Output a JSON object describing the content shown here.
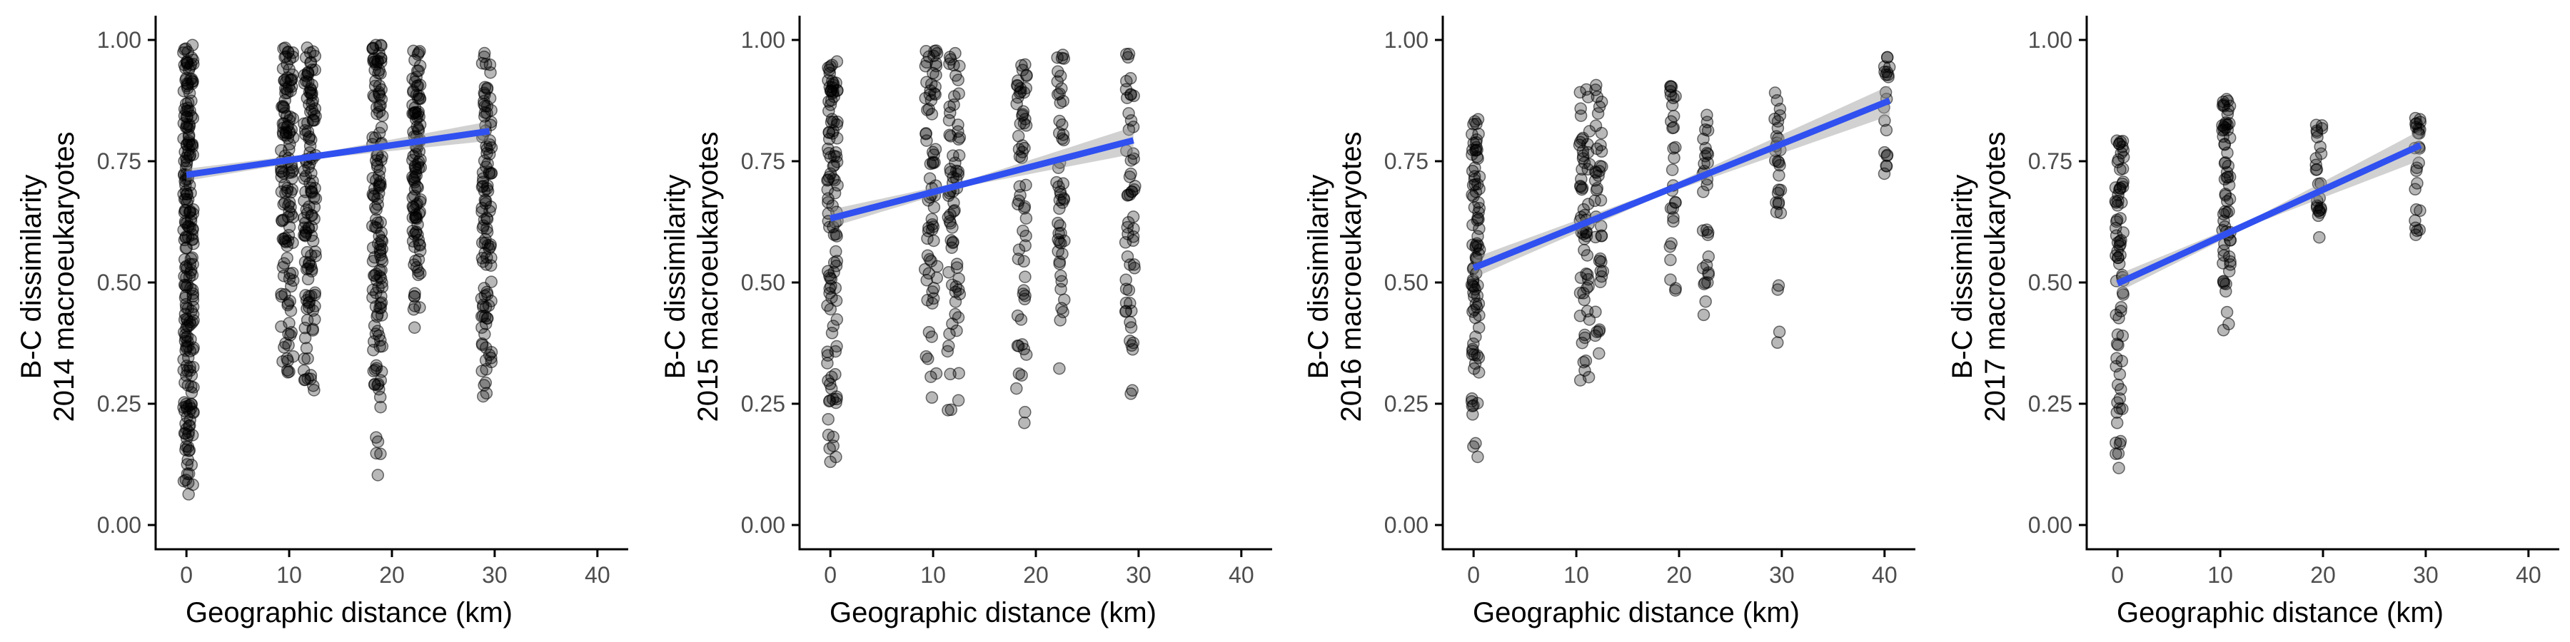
{
  "chart_data": [
    {
      "type": "scatter",
      "xlabel": "Geographic distance (km)",
      "ylabel_lines": [
        "B-C dissimilarity",
        "2014 macroeukaryotes"
      ],
      "xlim": [
        -3,
        43
      ],
      "ylim": [
        -0.05,
        1.05
      ],
      "xticks": [
        0,
        10,
        20,
        30,
        40
      ],
      "yticks": [
        0.0,
        0.25,
        0.5,
        0.75,
        1.0
      ],
      "ytick_labels": [
        "0.00",
        "0.25",
        "0.50",
        "0.75",
        "1.00"
      ],
      "groups": [
        {
          "x": 0.2,
          "spread": 0.5,
          "ymin": 0.05,
          "ymax": 0.99,
          "n": 230
        },
        {
          "x": 9.8,
          "spread": 0.6,
          "ymin": 0.27,
          "ymax": 0.99,
          "n": 130
        },
        {
          "x": 12.0,
          "spread": 0.6,
          "ymin": 0.27,
          "ymax": 0.99,
          "n": 130
        },
        {
          "x": 18.6,
          "spread": 0.5,
          "ymin": 0.1,
          "ymax": 0.99,
          "n": 140
        },
        {
          "x": 22.4,
          "spread": 0.4,
          "ymin": 0.38,
          "ymax": 0.98,
          "n": 110
        },
        {
          "x": 29.2,
          "spread": 0.5,
          "ymin": 0.25,
          "ymax": 0.98,
          "n": 110
        }
      ],
      "fit": {
        "x": [
          0,
          29.5
        ],
        "y": [
          0.722,
          0.812
        ],
        "ci_start": 0.008,
        "ci_end": 0.014
      }
    },
    {
      "type": "scatter",
      "xlabel": "Geographic distance (km)",
      "ylabel_lines": [
        "B-C dissimilarity",
        "2015 macroeukaryotes"
      ],
      "xlim": [
        -3,
        43
      ],
      "ylim": [
        -0.05,
        1.05
      ],
      "xticks": [
        0,
        10,
        20,
        30,
        40
      ],
      "yticks": [
        0.0,
        0.25,
        0.5,
        0.75,
        1.0
      ],
      "ytick_labels": [
        "0.00",
        "0.25",
        "0.50",
        "0.75",
        "1.00"
      ],
      "groups": [
        {
          "x": 0.2,
          "spread": 0.5,
          "ymin": 0.09,
          "ymax": 0.97,
          "n": 110
        },
        {
          "x": 9.8,
          "spread": 0.6,
          "ymin": 0.25,
          "ymax": 0.98,
          "n": 70
        },
        {
          "x": 12.0,
          "spread": 0.6,
          "ymin": 0.19,
          "ymax": 0.98,
          "n": 70
        },
        {
          "x": 18.6,
          "spread": 0.5,
          "ymin": 0.18,
          "ymax": 0.97,
          "n": 60
        },
        {
          "x": 22.4,
          "spread": 0.4,
          "ymin": 0.3,
          "ymax": 0.97,
          "n": 50
        },
        {
          "x": 29.2,
          "spread": 0.5,
          "ymin": 0.27,
          "ymax": 0.98,
          "n": 55
        }
      ],
      "fit": {
        "x": [
          0,
          29.5
        ],
        "y": [
          0.632,
          0.793
        ],
        "ci_start": 0.015,
        "ci_end": 0.022
      }
    },
    {
      "type": "scatter",
      "xlabel": "Geographic distance (km)",
      "ylabel_lines": [
        "B-C dissimilarity",
        "2016 macroeukaryotes"
      ],
      "xlim": [
        -3,
        43
      ],
      "ylim": [
        -0.05,
        1.05
      ],
      "xticks": [
        0,
        10,
        20,
        30,
        40
      ],
      "yticks": [
        0.0,
        0.25,
        0.5,
        0.75,
        1.0
      ],
      "ytick_labels": [
        "0.00",
        "0.25",
        "0.50",
        "0.75",
        "1.00"
      ],
      "groups": [
        {
          "x": 0.2,
          "spread": 0.4,
          "ymin": 0.13,
          "ymax": 0.84,
          "n": 90
        },
        {
          "x": 10.8,
          "spread": 0.5,
          "ymin": 0.28,
          "ymax": 0.91,
          "n": 60
        },
        {
          "x": 12.2,
          "spread": 0.4,
          "ymin": 0.31,
          "ymax": 0.94,
          "n": 40
        },
        {
          "x": 19.4,
          "spread": 0.3,
          "ymin": 0.43,
          "ymax": 0.91,
          "n": 30
        },
        {
          "x": 22.6,
          "spread": 0.3,
          "ymin": 0.42,
          "ymax": 0.93,
          "n": 30
        },
        {
          "x": 29.6,
          "spread": 0.3,
          "ymin": 0.35,
          "ymax": 0.9,
          "n": 30
        },
        {
          "x": 40.2,
          "spread": 0.3,
          "ymin": 0.68,
          "ymax": 0.97,
          "n": 20
        }
      ],
      "fit": {
        "x": [
          0,
          40.5
        ],
        "y": [
          0.53,
          0.875
        ],
        "ci_start": 0.018,
        "ci_end": 0.025
      }
    },
    {
      "type": "scatter",
      "xlabel": "Geographic distance (km)",
      "ylabel_lines": [
        "B-C dissimilarity",
        "2017 macroeukaryotes"
      ],
      "xlim": [
        -3,
        43
      ],
      "ylim": [
        -0.05,
        1.05
      ],
      "xticks": [
        0,
        10,
        20,
        30,
        40
      ],
      "yticks": [
        0.0,
        0.25,
        0.5,
        0.75,
        1.0
      ],
      "ytick_labels": [
        "0.00",
        "0.25",
        "0.50",
        "0.75",
        "1.00"
      ],
      "groups": [
        {
          "x": 0.2,
          "spread": 0.4,
          "ymin": 0.09,
          "ymax": 0.8,
          "n": 75
        },
        {
          "x": 10.6,
          "spread": 0.4,
          "ymin": 0.38,
          "ymax": 0.88,
          "n": 65
        },
        {
          "x": 19.6,
          "spread": 0.3,
          "ymin": 0.58,
          "ymax": 0.87,
          "n": 25
        },
        {
          "x": 29.2,
          "spread": 0.3,
          "ymin": 0.53,
          "ymax": 0.84,
          "n": 25
        }
      ],
      "fit": {
        "x": [
          0,
          29.5
        ],
        "y": [
          0.498,
          0.783
        ],
        "ci_start": 0.015,
        "ci_end": 0.025
      }
    }
  ]
}
